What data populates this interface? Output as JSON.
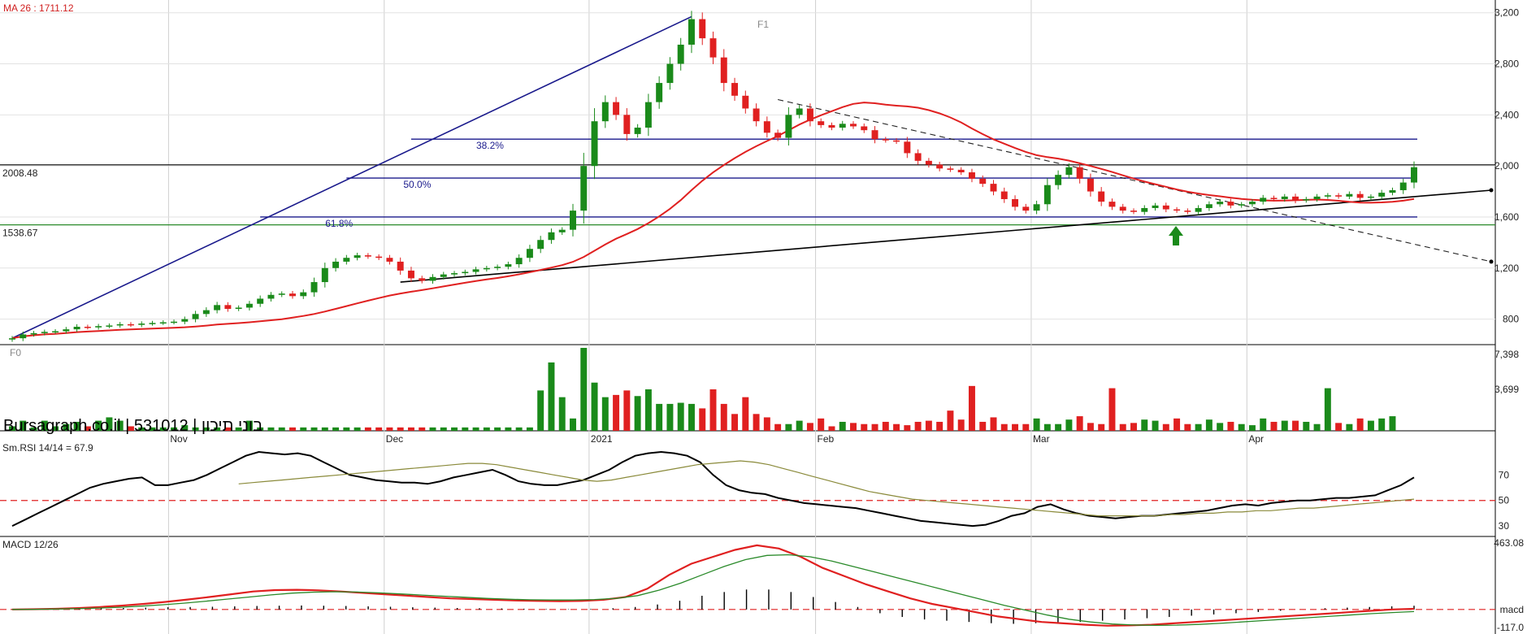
{
  "chart_data": [
    {
      "type": "candlestick",
      "title": "",
      "ma_label": "MA 26 : 1711.12",
      "ylim": [
        600,
        3300
      ],
      "yticks": [
        800,
        1200,
        1600,
        2000,
        2400,
        2800,
        3200
      ],
      "ytick_labels": [
        "800",
        "1,200",
        "1,600",
        "2,000",
        "2,400",
        "2,800",
        "3,200"
      ],
      "x_labels": [
        "Nov",
        "Dec",
        "2021",
        "Feb",
        "Mar",
        "Apr"
      ],
      "x_label_index": [
        15,
        35,
        54,
        75,
        95,
        115
      ],
      "horizontal_levels": [
        {
          "label": "2008.48",
          "value": 2008.48,
          "color": "#000000"
        },
        {
          "label": "1538.67",
          "value": 1538.67,
          "color": "#2a8a2a"
        }
      ],
      "fibonacci": [
        {
          "label": "38.2%",
          "value": 2210
        },
        {
          "label": "50.0%",
          "value": 1905
        },
        {
          "label": "61.8%",
          "value": 1600
        }
      ],
      "fib_anchor_low_label": "F0",
      "fib_anchor_high_label": "F1",
      "closes": [
        650,
        680,
        690,
        700,
        705,
        720,
        740,
        735,
        745,
        750,
        760,
        755,
        765,
        770,
        775,
        780,
        800,
        840,
        870,
        910,
        880,
        890,
        920,
        960,
        990,
        1000,
        980,
        1010,
        1090,
        1200,
        1250,
        1280,
        1300,
        1290,
        1280,
        1250,
        1180,
        1120,
        1100,
        1130,
        1150,
        1160,
        1170,
        1190,
        1200,
        1210,
        1230,
        1280,
        1350,
        1420,
        1480,
        1500,
        1650,
        2000,
        2350,
        2500,
        2400,
        2250,
        2300,
        2500,
        2650,
        2800,
        2950,
        3150,
        3000,
        2850,
        2650,
        2550,
        2450,
        2350,
        2260,
        2220,
        2400,
        2450,
        2350,
        2320,
        2300,
        2330,
        2310,
        2280,
        2210,
        2200,
        2190,
        2100,
        2040,
        2010,
        1980,
        1970,
        1950,
        1900,
        1860,
        1800,
        1740,
        1680,
        1650,
        1700,
        1850,
        1930,
        1990,
        1900,
        1800,
        1720,
        1680,
        1650,
        1640,
        1670,
        1690,
        1660,
        1650,
        1640,
        1670,
        1700,
        1720,
        1690,
        1700,
        1720,
        1750,
        1740,
        1760,
        1730,
        1740,
        1760,
        1770,
        1760,
        1780,
        1750,
        1760,
        1790,
        1810,
        1870,
        1990
      ],
      "volume": [
        400,
        900,
        300,
        900,
        400,
        600,
        800,
        400,
        900,
        1200,
        900,
        400,
        300,
        300,
        300,
        300,
        500,
        300,
        300,
        300,
        300,
        300,
        900,
        300,
        300,
        300,
        300,
        300,
        300,
        300,
        300,
        300,
        300,
        300,
        300,
        300,
        300,
        300,
        300,
        300,
        300,
        300,
        300,
        300,
        300,
        300,
        300,
        300,
        300,
        3600,
        6100,
        3000,
        1100,
        7398,
        4300,
        3000,
        3200,
        3600,
        3100,
        3700,
        2400,
        2400,
        2500,
        2400,
        2000,
        3700,
        2400,
        1500,
        3000,
        1500,
        1200,
        600,
        600,
        900,
        700,
        1100,
        400,
        800,
        700,
        600,
        600,
        800,
        600,
        500,
        800,
        900,
        800,
        1800,
        1000,
        4000,
        800,
        1200,
        600,
        600,
        600,
        1100,
        600,
        600,
        1000,
        1300,
        700,
        600,
        3800,
        600,
        700,
        1000,
        900,
        600,
        1100,
        600,
        600,
        1000,
        700,
        800,
        600,
        500,
        1100,
        800,
        900,
        900,
        800,
        600,
        3800,
        700,
        600,
        1100,
        900,
        1100,
        1300
      ],
      "volume_ylim": [
        0,
        7398
      ],
      "volume_tick_labels": [
        "3,699",
        "7,398"
      ],
      "brand": "Bursagraph.co.il | 531012 | בוני תיכון"
    },
    {
      "type": "line",
      "title": "Sm.RSI 14/14 = 67.9",
      "ylim": [
        25,
        95
      ],
      "yticks": [
        30,
        50,
        70
      ],
      "reference_line": 50,
      "series": [
        {
          "name": "",
          "color": "#000000",
          "values": [
            30,
            35,
            40,
            45,
            50,
            55,
            60,
            63,
            65,
            67,
            68,
            62,
            62,
            64,
            66,
            70,
            75,
            80,
            85,
            88,
            87,
            86,
            87,
            85,
            80,
            75,
            70,
            68,
            66,
            65,
            64,
            64,
            63,
            65,
            68,
            70,
            72,
            74,
            70,
            65,
            63,
            62,
            62,
            64,
            66,
            70,
            74,
            80,
            85,
            87,
            88,
            87,
            85,
            80,
            70,
            62,
            58,
            56,
            55,
            52,
            50,
            48,
            47,
            46,
            45,
            44,
            42,
            40,
            38,
            36,
            34,
            33,
            32,
            31,
            30,
            31,
            34,
            38,
            40,
            45,
            47,
            43,
            40,
            38,
            37,
            36,
            37,
            38,
            38,
            39,
            40,
            41,
            42,
            44,
            46,
            47,
            46,
            48,
            49,
            50,
            50,
            51,
            52,
            52,
            53,
            54,
            58,
            62,
            68
          ]
        },
        {
          "name": "",
          "color": "#8a8a3a",
          "values": [
            63,
            64,
            65,
            66,
            67,
            68,
            69,
            70,
            71,
            72,
            73,
            74,
            75,
            76,
            77,
            78,
            79,
            79,
            78,
            76,
            74,
            72,
            70,
            68,
            66,
            65,
            66,
            68,
            70,
            72,
            74,
            76,
            78,
            79,
            80,
            81,
            80,
            78,
            75,
            72,
            69,
            66,
            63,
            60,
            57,
            55,
            53,
            51,
            50,
            49,
            48,
            47,
            46,
            45,
            44,
            43,
            42,
            41,
            40,
            39,
            38,
            38,
            38,
            38,
            38,
            39,
            39,
            40,
            40,
            41,
            41,
            42,
            42,
            43,
            44,
            44,
            45,
            46,
            47,
            48,
            49,
            50,
            51
          ]
        }
      ]
    },
    {
      "type": "line",
      "title": "MACD 12/26",
      "ylim": [
        -130,
        480
      ],
      "ytick_labels": [
        "463.08",
        "macd",
        "-117.0"
      ],
      "reference_line": 0,
      "series": [
        {
          "name": "",
          "color": "#e02020",
          "values": [
            0,
            2,
            5,
            10,
            18,
            28,
            40,
            55,
            72,
            90,
            110,
            130,
            140,
            142,
            138,
            130,
            120,
            110,
            100,
            90,
            80,
            75,
            70,
            65,
            62,
            60,
            62,
            70,
            90,
            150,
            250,
            330,
            380,
            430,
            463,
            440,
            380,
            300,
            240,
            180,
            130,
            80,
            40,
            10,
            -20,
            -50,
            -70,
            -90,
            -100,
            -110,
            -117,
            -115,
            -110,
            -100,
            -90,
            -80,
            -70,
            -60,
            -50,
            -40,
            -30,
            -20,
            -10,
            0,
            5
          ]
        },
        {
          "name": "",
          "color": "#2a8a2a",
          "values": [
            0,
            1,
            3,
            6,
            10,
            16,
            24,
            34,
            46,
            60,
            75,
            90,
            105,
            118,
            125,
            128,
            126,
            120,
            112,
            104,
            96,
            88,
            80,
            74,
            70,
            68,
            68,
            72,
            80,
            100,
            140,
            190,
            250,
            310,
            360,
            390,
            395,
            380,
            350,
            310,
            270,
            230,
            190,
            150,
            110,
            70,
            30,
            -5,
            -40,
            -70,
            -90,
            -105,
            -112,
            -115,
            -113,
            -108,
            -100,
            -90,
            -80,
            -70,
            -60,
            -50,
            -40,
            -30,
            -22,
            -15
          ]
        },
        {
          "name": "",
          "color": "#000000",
          "values": [
            2,
            3,
            5,
            8,
            10,
            12,
            15,
            18,
            20,
            22,
            25,
            28,
            30,
            32,
            30,
            28,
            25,
            22,
            18,
            15,
            12,
            10,
            8,
            6,
            4,
            3,
            5,
            10,
            20,
            40,
            70,
            110,
            140,
            160,
            160,
            140,
            100,
            60,
            20,
            -30,
            -60,
            -80,
            -90,
            -100,
            -110,
            -115,
            -110,
            -105,
            -100,
            -90,
            -80,
            -70,
            -60,
            -50,
            -40,
            -30,
            -20,
            -10,
            0,
            10,
            15,
            20,
            25,
            30
          ]
        }
      ]
    }
  ]
}
